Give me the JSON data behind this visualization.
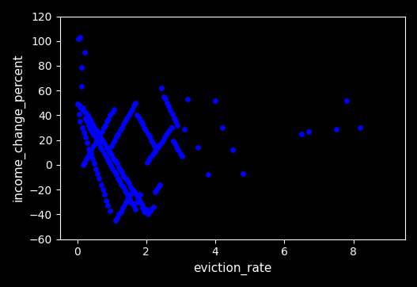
{
  "xlabel": "eviction_rate",
  "ylabel": "income_change_percent",
  "xlim": [
    -0.5,
    9.5
  ],
  "ylim": [
    -60,
    120
  ],
  "xticks": [
    0,
    2,
    4,
    6,
    8
  ],
  "yticks": [
    -60,
    -40,
    -20,
    0,
    20,
    40,
    60,
    80,
    100,
    120
  ],
  "background_color": "#000000",
  "dot_color": "#0000ff",
  "dot_size": 15,
  "x": [
    0.04,
    0.13,
    0.22,
    0.05,
    0.1,
    0.18,
    0.25,
    0.3,
    0.35,
    0.4,
    0.45,
    0.5,
    0.55,
    0.6,
    0.65,
    0.7,
    0.75,
    0.8,
    0.85,
    0.9,
    0.95,
    1.0,
    1.05,
    1.1,
    1.15,
    1.2,
    1.25,
    1.3,
    1.35,
    1.4,
    1.45,
    1.5,
    1.55,
    1.6,
    1.65,
    1.7,
    1.75,
    1.8,
    1.85,
    1.9,
    1.95,
    2.0,
    2.05,
    2.1,
    2.15,
    2.2,
    2.25,
    2.3,
    2.35,
    2.4,
    2.45,
    2.5,
    2.55,
    2.6,
    2.65,
    2.7,
    2.75,
    2.8,
    2.85,
    2.9,
    0.08,
    0.12,
    0.17,
    0.23,
    0.28,
    0.33,
    0.38,
    0.43,
    0.48,
    0.53,
    0.58,
    0.63,
    0.68,
    0.73,
    0.78,
    0.83,
    0.88,
    0.93,
    0.98,
    1.03,
    1.08,
    1.13,
    1.18,
    1.23,
    1.28,
    1.33,
    1.38,
    1.43,
    1.48,
    1.53,
    1.58,
    1.63,
    1.68,
    1.73,
    1.78,
    1.83,
    1.88,
    1.93,
    1.98,
    2.03,
    2.08,
    2.13,
    2.18,
    2.23,
    2.28,
    2.33,
    2.38,
    2.43,
    2.48,
    2.53,
    2.58,
    2.63,
    2.68,
    2.73,
    2.78,
    2.83,
    2.88,
    2.93,
    2.98,
    3.03,
    3.1,
    3.2,
    3.5,
    3.8,
    4.0,
    4.2,
    4.5,
    4.8,
    6.5,
    6.7,
    7.5,
    7.8,
    8.2,
    0.02,
    0.06,
    0.09,
    0.14,
    0.19,
    0.24,
    0.29,
    0.34,
    0.39,
    0.44,
    0.49,
    0.54,
    0.59,
    0.64,
    0.69,
    0.74,
    0.79,
    0.84,
    0.89,
    0.94,
    0.99,
    1.04,
    1.09,
    1.14,
    1.19,
    1.24,
    1.29,
    1.34,
    1.39,
    1.44,
    1.49,
    1.54,
    1.59,
    1.64,
    1.69,
    1.74,
    1.79,
    1.84,
    1.89,
    1.94,
    1.99,
    2.04,
    2.09,
    2.14,
    2.19,
    2.24,
    2.29,
    0.16,
    0.21,
    0.26,
    0.31,
    0.36,
    0.41,
    0.46,
    0.51,
    0.56,
    0.61,
    0.66,
    0.71,
    0.76,
    0.81,
    0.86,
    0.91,
    0.96,
    1.01,
    1.06,
    1.11,
    1.16,
    1.21,
    1.26,
    1.31,
    1.36,
    1.41,
    1.46,
    1.51,
    1.56,
    1.61
  ],
  "y": [
    102,
    79,
    91,
    48,
    46,
    44,
    42,
    40,
    38,
    35,
    33,
    30,
    28,
    25,
    23,
    21,
    19,
    17,
    14,
    12,
    10,
    8,
    5,
    3,
    1,
    -2,
    -4,
    -6,
    -9,
    -11,
    -13,
    -15,
    -18,
    -20,
    -22,
    -24,
    -27,
    -29,
    -31,
    -33,
    -36,
    -38,
    -40,
    -38,
    -36,
    -34,
    -22,
    -20,
    -18,
    -16,
    62,
    55,
    53,
    50,
    47,
    44,
    41,
    38,
    35,
    32,
    103,
    63,
    46,
    38,
    35,
    32,
    29,
    27,
    24,
    22,
    19,
    17,
    14,
    12,
    9,
    7,
    4,
    2,
    -1,
    -3,
    -6,
    -8,
    -11,
    -13,
    -16,
    -18,
    -21,
    -23,
    -26,
    -28,
    -31,
    -33,
    -36,
    -30,
    -27,
    -24,
    -35,
    -38,
    -36,
    2,
    4,
    6,
    8,
    10,
    12,
    14,
    16,
    18,
    20,
    22,
    24,
    26,
    28,
    30,
    19,
    17,
    14,
    12,
    9,
    7,
    29,
    53,
    14,
    -8,
    52,
    30,
    12,
    -7,
    25,
    27,
    29,
    52,
    30,
    49,
    41,
    35,
    30,
    26,
    22,
    18,
    13,
    9,
    5,
    1,
    -3,
    -7,
    -11,
    -16,
    -20,
    -24,
    -29,
    -33,
    -37,
    15,
    18,
    20,
    23,
    25,
    28,
    30,
    33,
    35,
    38,
    40,
    43,
    45,
    48,
    50,
    40,
    38,
    35,
    33,
    30,
    28,
    25,
    23,
    20,
    18,
    15,
    13,
    0,
    2,
    5,
    7,
    10,
    12,
    15,
    17,
    20,
    22,
    25,
    27,
    30,
    32,
    35,
    37,
    40,
    42,
    45,
    -45,
    -43,
    -40,
    -38,
    -35,
    -33,
    -30,
    -28,
    -25,
    -23,
    -20
  ]
}
